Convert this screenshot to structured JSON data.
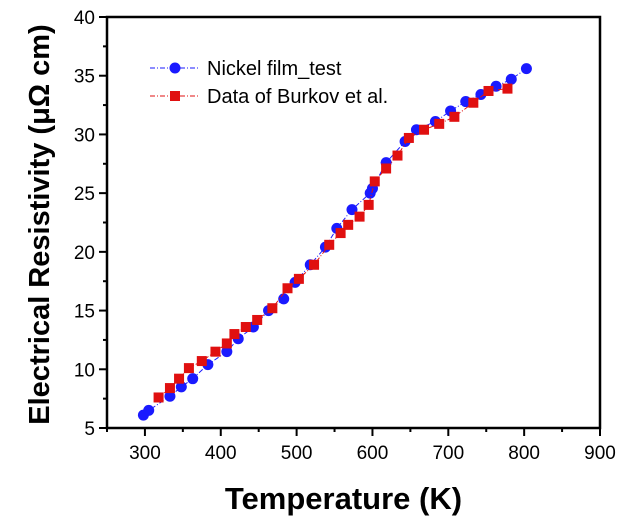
{
  "chart_data": {
    "type": "scatter",
    "xlabel": "Temperature (K)",
    "ylabel": "Electrical Resistivity (μΩ cm)",
    "xlim": [
      250,
      900
    ],
    "ylim": [
      5,
      40
    ],
    "x_ticks": [
      300,
      400,
      500,
      600,
      700,
      800,
      900
    ],
    "y_ticks": [
      5,
      10,
      15,
      20,
      25,
      30,
      35,
      40
    ],
    "grid": false,
    "legend_position": "top-left",
    "series": [
      {
        "name": "Nickel film_test",
        "marker": "circle",
        "color": "#1a1aff",
        "line": "dash-dot",
        "x": [
          298,
          305,
          333,
          348,
          363,
          383,
          408,
          423,
          443,
          463,
          483,
          498,
          518,
          538,
          553,
          573,
          597,
          600,
          618,
          643,
          658,
          683,
          703,
          723,
          743,
          763,
          783,
          803
        ],
        "y": [
          6.1,
          6.5,
          7.7,
          8.5,
          9.2,
          10.4,
          11.5,
          12.6,
          13.6,
          15.0,
          16.0,
          17.4,
          18.9,
          20.4,
          22.0,
          23.6,
          25.0,
          25.4,
          27.6,
          29.4,
          30.4,
          31.1,
          32.0,
          32.8,
          33.4,
          34.1,
          34.7,
          35.6
        ]
      },
      {
        "name": "Data of Burkov et al.",
        "marker": "square",
        "color": "#e01010",
        "line": "dash-dot",
        "x": [
          318,
          333,
          345,
          358,
          375,
          393,
          408,
          418,
          433,
          448,
          468,
          488,
          503,
          523,
          543,
          558,
          568,
          583,
          595,
          603,
          618,
          633,
          648,
          668,
          688,
          708,
          733,
          753,
          778
        ],
        "y": [
          7.6,
          8.4,
          9.2,
          10.1,
          10.7,
          11.5,
          12.2,
          13.0,
          13.6,
          14.2,
          15.2,
          16.9,
          17.7,
          18.9,
          20.6,
          21.6,
          22.3,
          23.0,
          24.0,
          26.0,
          27.1,
          28.2,
          29.7,
          30.4,
          30.9,
          31.5,
          32.7,
          33.7,
          33.9
        ]
      }
    ]
  }
}
